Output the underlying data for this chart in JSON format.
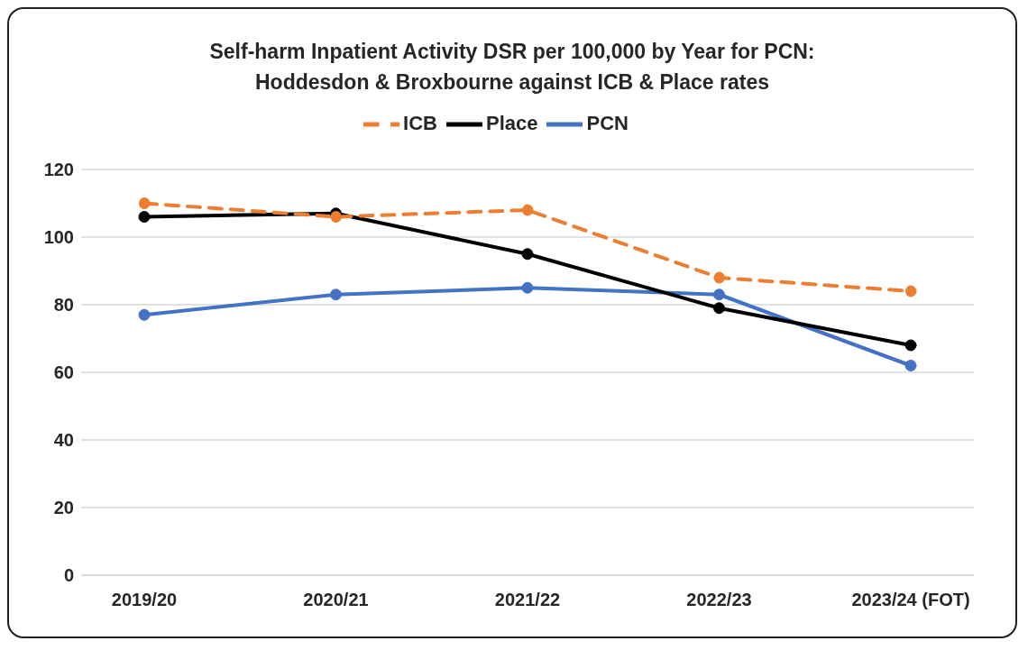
{
  "chart_data": {
    "type": "line",
    "title": "Self-harm  Inpatient Activity DSR per 100,000 by Year for PCN:\nHoddesdon & Broxbourne against ICB & Place rates",
    "categories": [
      "2019/20",
      "2020/21",
      "2021/22",
      "2022/23",
      "2023/24 (FOT)"
    ],
    "series": [
      {
        "name": "ICB",
        "color": "#ed7d31",
        "line_style": "dashed",
        "values": [
          110,
          106,
          108,
          88,
          84
        ]
      },
      {
        "name": "Place",
        "color": "#000000",
        "line_style": "solid",
        "values": [
          106,
          107,
          95,
          79,
          68
        ]
      },
      {
        "name": "PCN",
        "color": "#4472c4",
        "line_style": "solid",
        "values": [
          77,
          83,
          85,
          83,
          62
        ]
      }
    ],
    "ylim": [
      0,
      120
    ],
    "yticks": [
      0,
      20,
      40,
      60,
      80,
      100,
      120
    ],
    "grid": "y",
    "legend": "top",
    "marker": "circle"
  }
}
